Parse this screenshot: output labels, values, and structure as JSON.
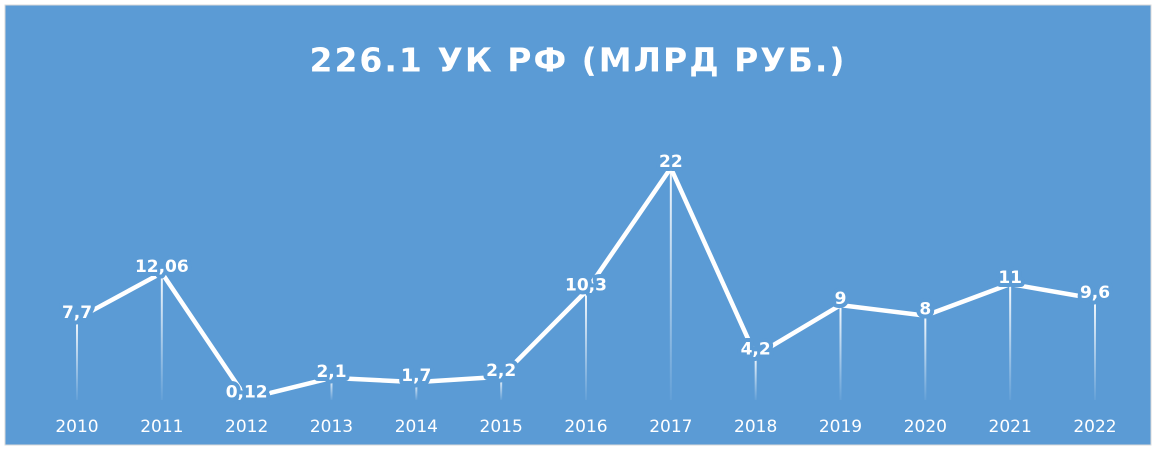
{
  "chart_data": {
    "type": "line",
    "title": "226.1 УК РФ (МЛРД РУБ.)",
    "categories": [
      "2010",
      "2011",
      "2012",
      "2013",
      "2014",
      "2015",
      "2016",
      "2017",
      "2018",
      "2019",
      "2020",
      "2021",
      "2022"
    ],
    "values": [
      7.7,
      12.06,
      0.12,
      2.1,
      1.7,
      2.2,
      10.3,
      22,
      4.2,
      9,
      8,
      11,
      9.6
    ],
    "value_labels": [
      "7,7",
      "12,06",
      "0,12",
      "2,1",
      "1,7",
      "2,2",
      "10,3",
      "22",
      "4,2",
      "9",
      "8",
      "11",
      "9,6"
    ],
    "color": "#ffffff",
    "background": "#5b9bd5"
  }
}
